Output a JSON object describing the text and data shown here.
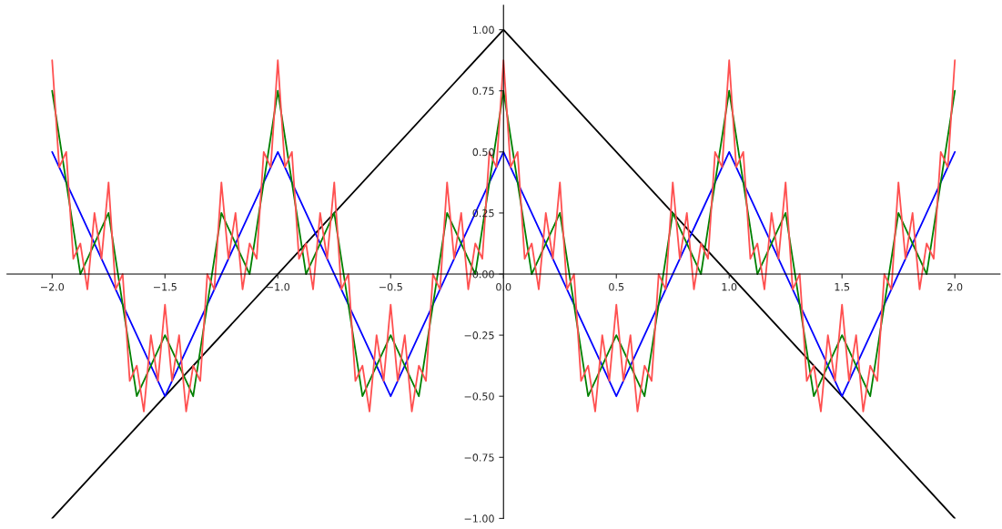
{
  "chart_data": {
    "type": "line",
    "series": [
      {
        "color": "#000000",
        "x": [
          -2,
          0,
          2
        ],
        "values": [
          -1,
          1,
          -1
        ]
      },
      {
        "color": "#0000ff",
        "x": [
          -2,
          -1.5,
          -1,
          -0.5,
          0,
          0.5,
          1,
          1.5,
          2
        ],
        "values": [
          0.5,
          -0.5,
          0.5,
          -0.5,
          0.5,
          -0.5,
          0.5,
          -0.5,
          0.5
        ]
      },
      {
        "color": "#008000",
        "x": [
          -2,
          -1.875,
          -1.75,
          -1.625,
          -1.5,
          -1.375,
          -1.25,
          -1.125,
          -1,
          -0.875,
          -0.75,
          -0.625,
          -0.5,
          -0.375,
          -0.25,
          -0.125,
          0,
          0.125,
          0.25,
          0.375,
          0.5,
          0.625,
          0.75,
          0.875,
          1,
          1.125,
          1.25,
          1.375,
          1.5,
          1.625,
          1.75,
          1.875,
          2
        ],
        "values": [
          0.75,
          0,
          0.25,
          -0.5,
          -0.25,
          -0.5,
          0.25,
          0,
          0.75,
          0,
          0.25,
          -0.5,
          -0.25,
          -0.5,
          0.25,
          0,
          0.75,
          0,
          0.25,
          -0.5,
          -0.25,
          -0.5,
          0.25,
          0,
          0.75,
          0,
          0.25,
          -0.5,
          -0.25,
          -0.5,
          0.25,
          0,
          0.75
        ]
      },
      {
        "color": "#ff5050",
        "x": [
          -2,
          -1.96875,
          -1.9375,
          -1.90625,
          -1.875,
          -1.84375,
          -1.8125,
          -1.78125,
          -1.75,
          -1.71875,
          -1.6875,
          -1.65625,
          -1.625,
          -1.59375,
          -1.5625,
          -1.53125,
          -1.5,
          -1.46875,
          -1.4375,
          -1.40625,
          -1.375,
          -1.34375,
          -1.3125,
          -1.28125,
          -1.25,
          -1.21875,
          -1.1875,
          -1.15625,
          -1.125,
          -1.09375,
          -1.0625,
          -1.03125,
          -1,
          -0.96875,
          -0.9375,
          -0.90625,
          -0.875,
          -0.84375,
          -0.8125,
          -0.78125,
          -0.75,
          -0.71875,
          -0.6875,
          -0.65625,
          -0.625,
          -0.59375,
          -0.5625,
          -0.53125,
          -0.5,
          -0.46875,
          -0.4375,
          -0.40625,
          -0.375,
          -0.34375,
          -0.3125,
          -0.28125,
          -0.25,
          -0.21875,
          -0.1875,
          -0.15625,
          -0.125,
          -0.09375,
          -0.0625,
          -0.03125,
          0,
          0.03125,
          0.0625,
          0.09375,
          0.125,
          0.15625,
          0.1875,
          0.21875,
          0.25,
          0.28125,
          0.3125,
          0.34375,
          0.375,
          0.40625,
          0.4375,
          0.46875,
          0.5,
          0.53125,
          0.5625,
          0.59375,
          0.625,
          0.65625,
          0.6875,
          0.71875,
          0.75,
          0.78125,
          0.8125,
          0.84375,
          0.875,
          0.90625,
          0.9375,
          0.96875,
          1,
          1.03125,
          1.0625,
          1.09375,
          1.125,
          1.15625,
          1.1875,
          1.21875,
          1.25,
          1.28125,
          1.3125,
          1.34375,
          1.375,
          1.40625,
          1.4375,
          1.46875,
          1.5,
          1.53125,
          1.5625,
          1.59375,
          1.625,
          1.65625,
          1.6875,
          1.71875,
          1.75,
          1.78125,
          1.8125,
          1.84375,
          1.875,
          1.90625,
          1.9375,
          1.96875,
          2
        ],
        "values": [
          0.875,
          0.4375,
          0.5,
          0.0625,
          0.125,
          -0.0625,
          0.25,
          0.0625,
          0.375,
          -0.0625,
          0,
          -0.4375,
          -0.375,
          -0.5625,
          -0.25,
          -0.4375,
          -0.125,
          -0.4375,
          -0.25,
          -0.5625,
          -0.375,
          -0.4375,
          0,
          -0.0625,
          0.375,
          0.0625,
          0.25,
          -0.0625,
          0.125,
          0.0625,
          0.5,
          0.4375,
          0.875,
          0.4375,
          0.5,
          0.0625,
          0.125,
          -0.0625,
          0.25,
          0.0625,
          0.375,
          -0.0625,
          0,
          -0.4375,
          -0.375,
          -0.5625,
          -0.25,
          -0.4375,
          -0.125,
          -0.4375,
          -0.25,
          -0.5625,
          -0.375,
          -0.4375,
          0,
          -0.0625,
          0.375,
          0.0625,
          0.25,
          -0.0625,
          0.125,
          0.0625,
          0.5,
          0.4375,
          0.875,
          0.4375,
          0.5,
          0.0625,
          0.125,
          -0.0625,
          0.25,
          0.0625,
          0.375,
          -0.0625,
          0,
          -0.4375,
          -0.375,
          -0.5625,
          -0.25,
          -0.4375,
          -0.125,
          -0.4375,
          -0.25,
          -0.5625,
          -0.375,
          -0.4375,
          0,
          -0.0625,
          0.375,
          0.0625,
          0.25,
          -0.0625,
          0.125,
          0.0625,
          0.5,
          0.4375,
          0.875,
          0.4375,
          0.5,
          0.0625,
          0.125,
          -0.0625,
          0.25,
          0.0625,
          0.375,
          -0.0625,
          0,
          -0.4375,
          -0.375,
          -0.5625,
          -0.25,
          -0.4375,
          -0.125,
          -0.4375,
          -0.25,
          -0.5625,
          -0.375,
          -0.4375,
          0,
          -0.0625,
          0.375,
          0.0625,
          0.25,
          -0.0625,
          0.125,
          0.0625,
          0.5,
          0.4375,
          0.875
        ]
      }
    ],
    "xlim": [
      -2.2,
      2.2
    ],
    "ylim": [
      -1.0,
      1.1
    ],
    "xticks": [
      {
        "value": -2.0,
        "label": "−2.0"
      },
      {
        "value": -1.5,
        "label": "−1.5"
      },
      {
        "value": -1.0,
        "label": "−1.0"
      },
      {
        "value": -0.5,
        "label": "−0.5"
      },
      {
        "value": 0.0,
        "label": "0.0"
      },
      {
        "value": 0.5,
        "label": "0.5"
      },
      {
        "value": 1.0,
        "label": "1.0"
      },
      {
        "value": 1.5,
        "label": "1.5"
      },
      {
        "value": 2.0,
        "label": "2.0"
      }
    ],
    "yticks": [
      {
        "value": -1.0,
        "label": "−1.00"
      },
      {
        "value": -0.75,
        "label": "−0.75"
      },
      {
        "value": -0.5,
        "label": "−0.50"
      },
      {
        "value": -0.25,
        "label": "−0.25"
      },
      {
        "value": 0.0,
        "label": "0.00"
      },
      {
        "value": 0.25,
        "label": "0.25"
      },
      {
        "value": 0.5,
        "label": "0.50"
      },
      {
        "value": 0.75,
        "label": "0.75"
      },
      {
        "value": 1.0,
        "label": "1.00"
      }
    ],
    "grid": false,
    "marker": "none",
    "line_style": "solid"
  }
}
